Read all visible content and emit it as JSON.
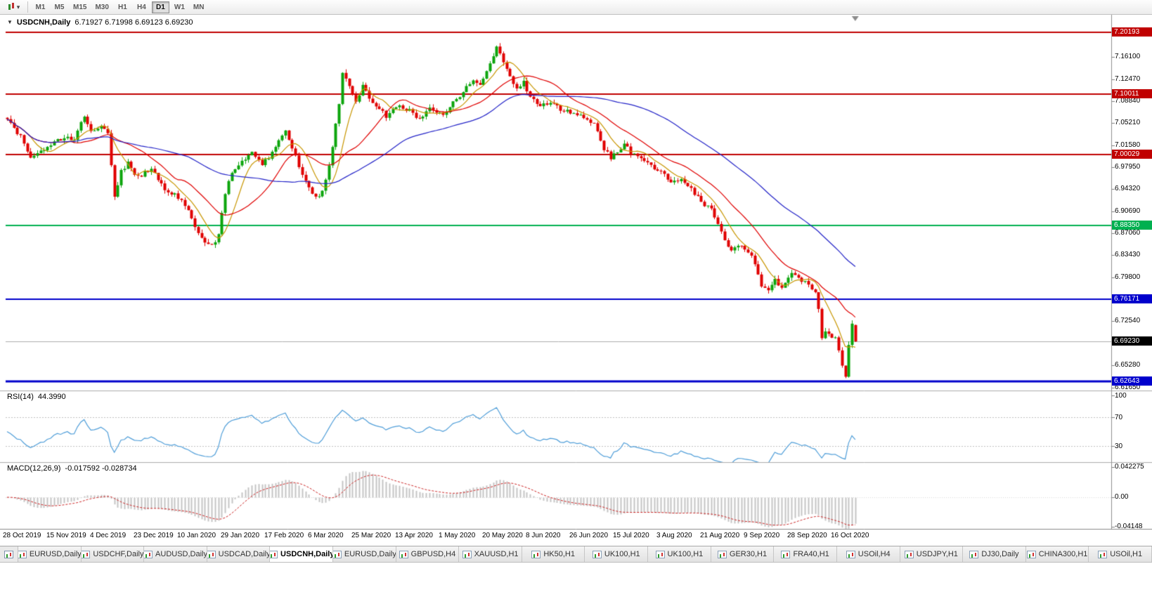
{
  "toolbar": {
    "timeframes": [
      "M1",
      "M5",
      "M15",
      "M30",
      "H1",
      "H4",
      "D1",
      "W1",
      "MN"
    ],
    "active_timeframe": "D1",
    "chart_tool_icon": "candlestick-chart-dropdown"
  },
  "chart": {
    "title": "USDCNH,Daily",
    "ohlc_text": "6.71927 6.71998 6.69123 6.69230",
    "price_axis_labels": [
      "7.16100",
      "7.12470",
      "7.08840",
      "7.05210",
      "7.01580",
      "6.97950",
      "6.94320",
      "6.90690",
      "6.87060",
      "6.83430",
      "6.79800",
      "6.76170",
      "6.72540",
      "6.68910",
      "6.65280",
      "6.61650"
    ],
    "date_axis": [
      {
        "i": 0,
        "label": "28 Oct 2019"
      },
      {
        "i": 13,
        "label": "15 Nov 2019"
      },
      {
        "i": 26,
        "label": "4 Dec 2019"
      },
      {
        "i": 39,
        "label": "23 Dec 2019"
      },
      {
        "i": 52,
        "label": "10 Jan 2020"
      },
      {
        "i": 65,
        "label": "29 Jan 2020"
      },
      {
        "i": 78,
        "label": "17 Feb 2020"
      },
      {
        "i": 91,
        "label": "6 Mar 2020"
      },
      {
        "i": 104,
        "label": "25 Mar 2020"
      },
      {
        "i": 117,
        "label": "13 Apr 2020"
      },
      {
        "i": 130,
        "label": "1 May 2020"
      },
      {
        "i": 143,
        "label": "20 May 2020"
      },
      {
        "i": 156,
        "label": "8 Jun 2020"
      },
      {
        "i": 169,
        "label": "26 Jun 2020"
      },
      {
        "i": 182,
        "label": "15 Jul 2020"
      },
      {
        "i": 195,
        "label": "3 Aug 2020"
      },
      {
        "i": 208,
        "label": "21 Aug 2020"
      },
      {
        "i": 221,
        "label": "9 Sep 2020"
      },
      {
        "i": 234,
        "label": "28 Sep 2020"
      },
      {
        "i": 247,
        "label": "16 Oct 2020"
      }
    ]
  },
  "rsi": {
    "label": "RSI(14)",
    "value": "44.3990",
    "axis_labels": [
      "100",
      "70",
      "30"
    ]
  },
  "macd": {
    "label": "MACD(12,26,9)",
    "values": "-0.017592 -0.028734",
    "axis_labels": [
      "0.042275",
      "0.00",
      "-0.04148"
    ]
  },
  "tabs": {
    "active_index": 4,
    "items": [
      "EURUSD,Daily",
      "USDCHF,Daily",
      "AUDUSD,Daily",
      "USDCAD,Daily",
      "USDCNH,Daily",
      "EURUSD,Daily",
      "GBPUSD,H4",
      "XAUUSD,H1",
      "HK50,H1",
      "UK100,H1",
      "UK100,H1",
      "GER30,H1",
      "FRA40,H1",
      "USOil,H4",
      "USDJPY,H1",
      "DJ30,Daily",
      "CHINA300,H1",
      "USOil,H1"
    ]
  },
  "chart_data": {
    "type": "candlestick",
    "symbol": "USDCNH",
    "period": "Daily",
    "last_bar": {
      "open": 6.71927,
      "high": 6.71998,
      "low": 6.69123,
      "close": 6.6923
    },
    "levels": [
      {
        "label": "7.20193",
        "color": "#C00000",
        "width": 2
      },
      {
        "label": "7.10011",
        "color": "#C00000",
        "width": 2
      },
      {
        "label": "7.00029",
        "color": "#C00000",
        "width": 2
      },
      {
        "label": "6.88350",
        "color": "#00B050",
        "width": 2
      },
      {
        "label": "6.76171",
        "color": "#0000CC",
        "width": 2
      },
      {
        "label": "6.62643",
        "color": "#0000CC",
        "width": 3
      }
    ],
    "current_price": {
      "label": "6.69230",
      "color": "#000000"
    },
    "price_range": [
      6.6113,
      7.2297
    ],
    "bar_count": 254,
    "bar_spacing_px": 4.77,
    "close_anchors": [
      [
        0,
        7.058
      ],
      [
        4,
        7.03
      ],
      [
        7,
        6.992
      ],
      [
        11,
        7.008
      ],
      [
        15,
        7.024
      ],
      [
        20,
        7.028
      ],
      [
        23,
        7.062
      ],
      [
        25,
        7.04
      ],
      [
        28,
        7.048
      ],
      [
        30,
        7.034
      ],
      [
        32,
        6.932
      ],
      [
        34,
        6.972
      ],
      [
        36,
        6.986
      ],
      [
        39,
        6.962
      ],
      [
        43,
        6.978
      ],
      [
        47,
        6.944
      ],
      [
        50,
        6.934
      ],
      [
        52,
        6.924
      ],
      [
        55,
        6.896
      ],
      [
        57,
        6.872
      ],
      [
        59,
        6.856
      ],
      [
        61,
        6.85
      ],
      [
        63,
        6.868
      ],
      [
        65,
        6.936
      ],
      [
        67,
        6.972
      ],
      [
        70,
        6.99
      ],
      [
        73,
        7.006
      ],
      [
        76,
        6.984
      ],
      [
        78,
        6.996
      ],
      [
        81,
        7.026
      ],
      [
        83,
        7.04
      ],
      [
        85,
        7.012
      ],
      [
        87,
        6.982
      ],
      [
        89,
        6.958
      ],
      [
        91,
        6.934
      ],
      [
        93,
        6.928
      ],
      [
        95,
        6.956
      ],
      [
        97,
        7.014
      ],
      [
        99,
        7.086
      ],
      [
        100,
        7.138
      ],
      [
        102,
        7.112
      ],
      [
        104,
        7.09
      ],
      [
        106,
        7.112
      ],
      [
        108,
        7.094
      ],
      [
        110,
        7.08
      ],
      [
        113,
        7.064
      ],
      [
        117,
        7.082
      ],
      [
        120,
        7.072
      ],
      [
        123,
        7.058
      ],
      [
        126,
        7.08
      ],
      [
        130,
        7.064
      ],
      [
        133,
        7.086
      ],
      [
        136,
        7.102
      ],
      [
        139,
        7.126
      ],
      [
        141,
        7.112
      ],
      [
        143,
        7.136
      ],
      [
        145,
        7.162
      ],
      [
        146,
        7.18
      ],
      [
        148,
        7.15
      ],
      [
        150,
        7.128
      ],
      [
        152,
        7.11
      ],
      [
        154,
        7.12
      ],
      [
        156,
        7.094
      ],
      [
        159,
        7.08
      ],
      [
        162,
        7.088
      ],
      [
        165,
        7.074
      ],
      [
        169,
        7.068
      ],
      [
        172,
        7.062
      ],
      [
        175,
        7.05
      ],
      [
        178,
        7.008
      ],
      [
        180,
        6.996
      ],
      [
        182,
        7.004
      ],
      [
        184,
        7.02
      ],
      [
        186,
        7.002
      ],
      [
        189,
        6.992
      ],
      [
        192,
        6.982
      ],
      [
        195,
        6.972
      ],
      [
        198,
        6.954
      ],
      [
        201,
        6.962
      ],
      [
        204,
        6.944
      ],
      [
        206,
        6.93
      ],
      [
        208,
        6.918
      ],
      [
        210,
        6.914
      ],
      [
        212,
        6.886
      ],
      [
        214,
        6.856
      ],
      [
        216,
        6.84
      ],
      [
        218,
        6.852
      ],
      [
        221,
        6.842
      ],
      [
        223,
        6.822
      ],
      [
        225,
        6.786
      ],
      [
        227,
        6.774
      ],
      [
        229,
        6.792
      ],
      [
        231,
        6.784
      ],
      [
        234,
        6.806
      ],
      [
        236,
        6.796
      ],
      [
        239,
        6.786
      ],
      [
        241,
        6.772
      ],
      [
        242,
        6.744
      ],
      [
        243,
        6.698
      ],
      [
        244,
        6.712
      ],
      [
        245,
        6.704
      ],
      [
        247,
        6.698
      ],
      [
        248,
        6.674
      ],
      [
        249,
        6.654
      ],
      [
        250,
        6.634
      ],
      [
        251,
        6.688
      ],
      [
        252,
        6.719
      ],
      [
        253,
        6.6923
      ]
    ],
    "moving_averages": [
      {
        "period": 8,
        "color": "#C89600"
      },
      {
        "period": 20,
        "color": "#E00000"
      },
      {
        "period": 55,
        "color": "#2424C8"
      }
    ],
    "indicators": {
      "rsi_period": 14,
      "macd": [
        12,
        26,
        9
      ]
    },
    "colors": {
      "up": "#0CA50C",
      "down": "#E00000",
      "rsi": "#4F9ED9",
      "macd_hist": "#C4C4C4",
      "macd_signal": "#CC2222",
      "bid_line": "#ADADAD"
    }
  }
}
